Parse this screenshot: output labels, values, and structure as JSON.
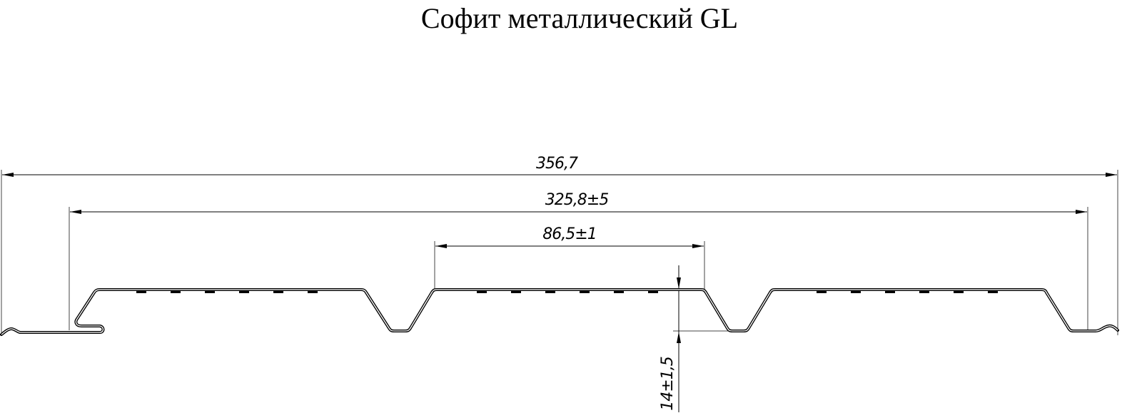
{
  "title": "Софит металлический GL",
  "dimensions": {
    "overall_width": "356,7",
    "effective_width": "325,8±5",
    "rib_pitch": "86,5±1",
    "profile_height": "14±1,5"
  },
  "colors": {
    "line": "#000000",
    "extension_line": "#555555",
    "background": "#ffffff"
  }
}
